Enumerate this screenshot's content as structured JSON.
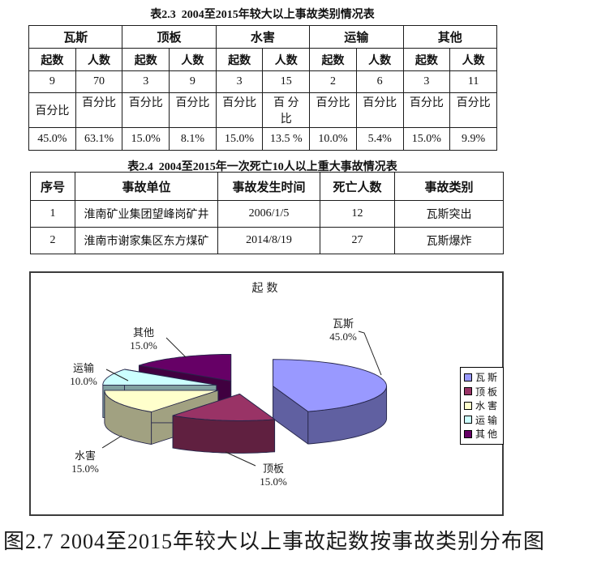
{
  "table1": {
    "title": "表2.3  2004至2015年较大以上事故类别情况表",
    "groups": [
      "瓦斯",
      "顶板",
      "水害",
      "运输",
      "其他"
    ],
    "sub_headers": [
      "起数",
      "人数"
    ],
    "counts": [
      "9",
      "70",
      "3",
      "9",
      "3",
      "15",
      "2",
      "6",
      "3",
      "11"
    ],
    "pct_labels": [
      "百分比",
      "百分比",
      "百分比",
      "百分比",
      "百分比",
      "百 分\n比",
      "百分比",
      "百分比",
      "百分比",
      "百分比"
    ],
    "percents": [
      "45.0%",
      "63.1%",
      "15.0%",
      "8.1%",
      "15.0%",
      "13.5 %",
      "10.0%",
      "5.4%",
      "15.0%",
      "9.9%"
    ]
  },
  "table2": {
    "title": "表2.4  2004至2015年一次死亡10人以上重大事故情况表",
    "headers": [
      "序号",
      "事故单位",
      "事故发生时间",
      "死亡人数",
      "事故类别"
    ],
    "rows": [
      [
        "1",
        "淮南矿业集团望峰岗矿井",
        "2006/1/5",
        "12",
        "瓦斯突出"
      ],
      [
        "2",
        "淮南市谢家集区东方煤矿",
        "2014/8/19",
        "27",
        "瓦斯爆炸"
      ]
    ]
  },
  "chart_data": {
    "type": "pie",
    "style": "3d-exploded",
    "title": "起数",
    "labels": [
      "瓦斯",
      "顶板",
      "水害",
      "运输",
      "其他"
    ],
    "values": [
      45.0,
      15.0,
      15.0,
      10.0,
      15.0
    ],
    "value_suffix": "%",
    "colors": [
      "#9999FF",
      "#993366",
      "#FFFFCC",
      "#CCFFFF",
      "#660066"
    ],
    "legend_position": "right",
    "legend_entries": [
      "瓦斯",
      "顶板",
      "水害",
      "运输",
      "其他"
    ],
    "start_angle_deg": 0,
    "direction": "clockwise"
  },
  "caption": "图2.7 2004至2015年较大以上事故起数按事故类别分布图"
}
